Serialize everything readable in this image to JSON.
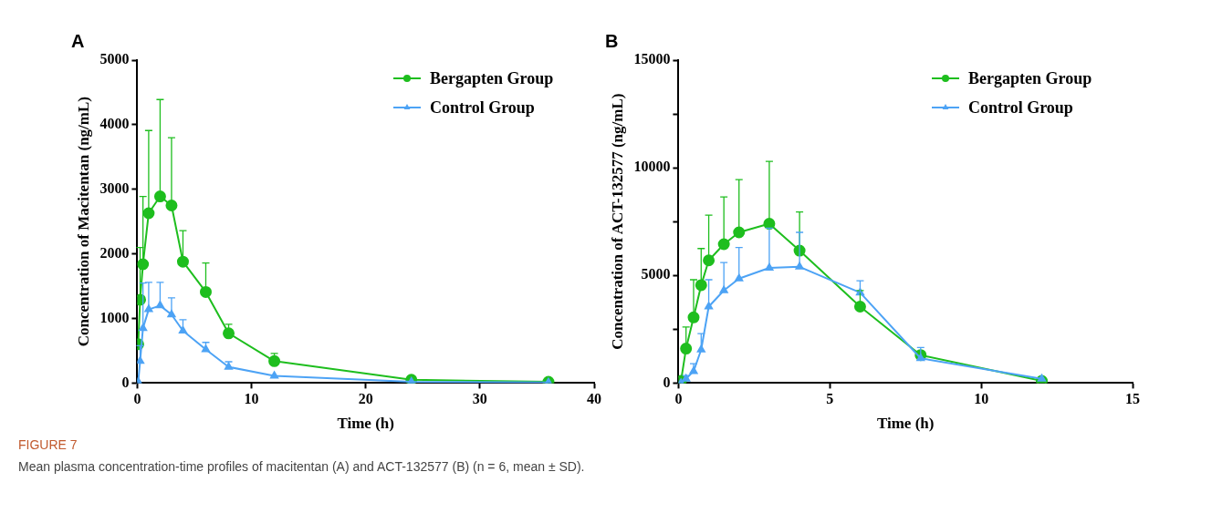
{
  "chart_data": [
    {
      "type": "line",
      "title": "A",
      "xlabel": "Time (h)",
      "ylabel": "Concentration of Macitentan (ng/mL)",
      "x": [
        0.083,
        0.25,
        0.5,
        1,
        2,
        3,
        4,
        6,
        8,
        12,
        24,
        36
      ],
      "xlim": [
        0,
        40
      ],
      "xticks": [
        0,
        10,
        20,
        30,
        40
      ],
      "ylim": [
        0,
        5000
      ],
      "yticks": [
        0,
        1000,
        2000,
        3000,
        4000,
        5000
      ],
      "legend": "top right",
      "series": [
        {
          "name": "Bergapten Group",
          "color": "#1ebe1e",
          "marker": "circle",
          "values": [
            600,
            1290,
            1840,
            2630,
            2890,
            2750,
            1880,
            1410,
            770,
            340,
            50,
            20
          ],
          "errors": [
            null,
            [
              1290,
              2100
            ],
            [
              1840,
              2890
            ],
            [
              2630,
              3910
            ],
            [
              2890,
              4390
            ],
            [
              2750,
              3800
            ],
            [
              1880,
              2360
            ],
            [
              1410,
              1860
            ],
            [
              770,
              910
            ],
            [
              340,
              460
            ],
            null,
            null
          ]
        },
        {
          "name": "Control Group",
          "color": "#4da3f5",
          "marker": "triangle",
          "values": [
            20,
            340,
            850,
            1140,
            1200,
            1060,
            810,
            520,
            250,
            110,
            20,
            10
          ],
          "errors": [
            null,
            [
              340,
              580
            ],
            [
              850,
              1550
            ],
            [
              1140,
              1560
            ],
            [
              1200,
              1560
            ],
            [
              1060,
              1320
            ],
            [
              810,
              980
            ],
            [
              520,
              630
            ],
            [
              250,
              330
            ],
            null,
            null,
            null
          ]
        }
      ],
      "annotations": [
        "FIGURE 7",
        "Mean plasma concentration-time profiles of macitentan (A) and ACT-132577 (B) (n = 6, mean ± SD)."
      ]
    },
    {
      "type": "line",
      "title": "B",
      "xlabel": "Time (h)",
      "ylabel": "Concentration of ACT-132577 (ng/mL)",
      "x": [
        0.083,
        0.25,
        0.5,
        0.75,
        1,
        1.5,
        2,
        3,
        4,
        6,
        8,
        12
      ],
      "xlim": [
        0,
        15
      ],
      "xticks": [
        0,
        5,
        10,
        15
      ],
      "ylim": [
        0,
        15000
      ],
      "yticks": [
        0,
        {
          "value": 2500,
          "label": null
        },
        5000,
        {
          "value": 7500,
          "label": null
        },
        10000,
        {
          "value": 12500,
          "label": null
        },
        15000
      ],
      "legend": "top right",
      "series": [
        {
          "name": "Bergapten Group",
          "color": "#1ebe1e",
          "marker": "circle",
          "values": [
            100,
            1600,
            3050,
            4550,
            5700,
            6450,
            7000,
            7400,
            6150,
            3550,
            1300,
            100
          ],
          "errors": [
            null,
            [
              1600,
              2600
            ],
            [
              3050,
              4800
            ],
            [
              4550,
              6250
            ],
            [
              5700,
              7800
            ],
            [
              6450,
              8650
            ],
            [
              7000,
              9450
            ],
            [
              7400,
              10300
            ],
            [
              6150,
              7950
            ],
            [
              3550,
              4300
            ],
            null,
            null
          ]
        },
        {
          "name": "Control Group",
          "color": "#4da3f5",
          "marker": "triangle",
          "values": [
            0,
            200,
            550,
            1550,
            3550,
            4300,
            4850,
            5350,
            5400,
            4200,
            1150,
            200
          ],
          "errors": [
            null,
            [
              200,
              350
            ],
            [
              550,
              900
            ],
            [
              1550,
              2300
            ],
            [
              3550,
              4800
            ],
            [
              4300,
              5600
            ],
            [
              4850,
              6300
            ],
            [
              5350,
              7200
            ],
            [
              5400,
              7000
            ],
            [
              4200,
              4750
            ],
            [
              1150,
              1650
            ],
            null
          ]
        }
      ]
    }
  ]
}
